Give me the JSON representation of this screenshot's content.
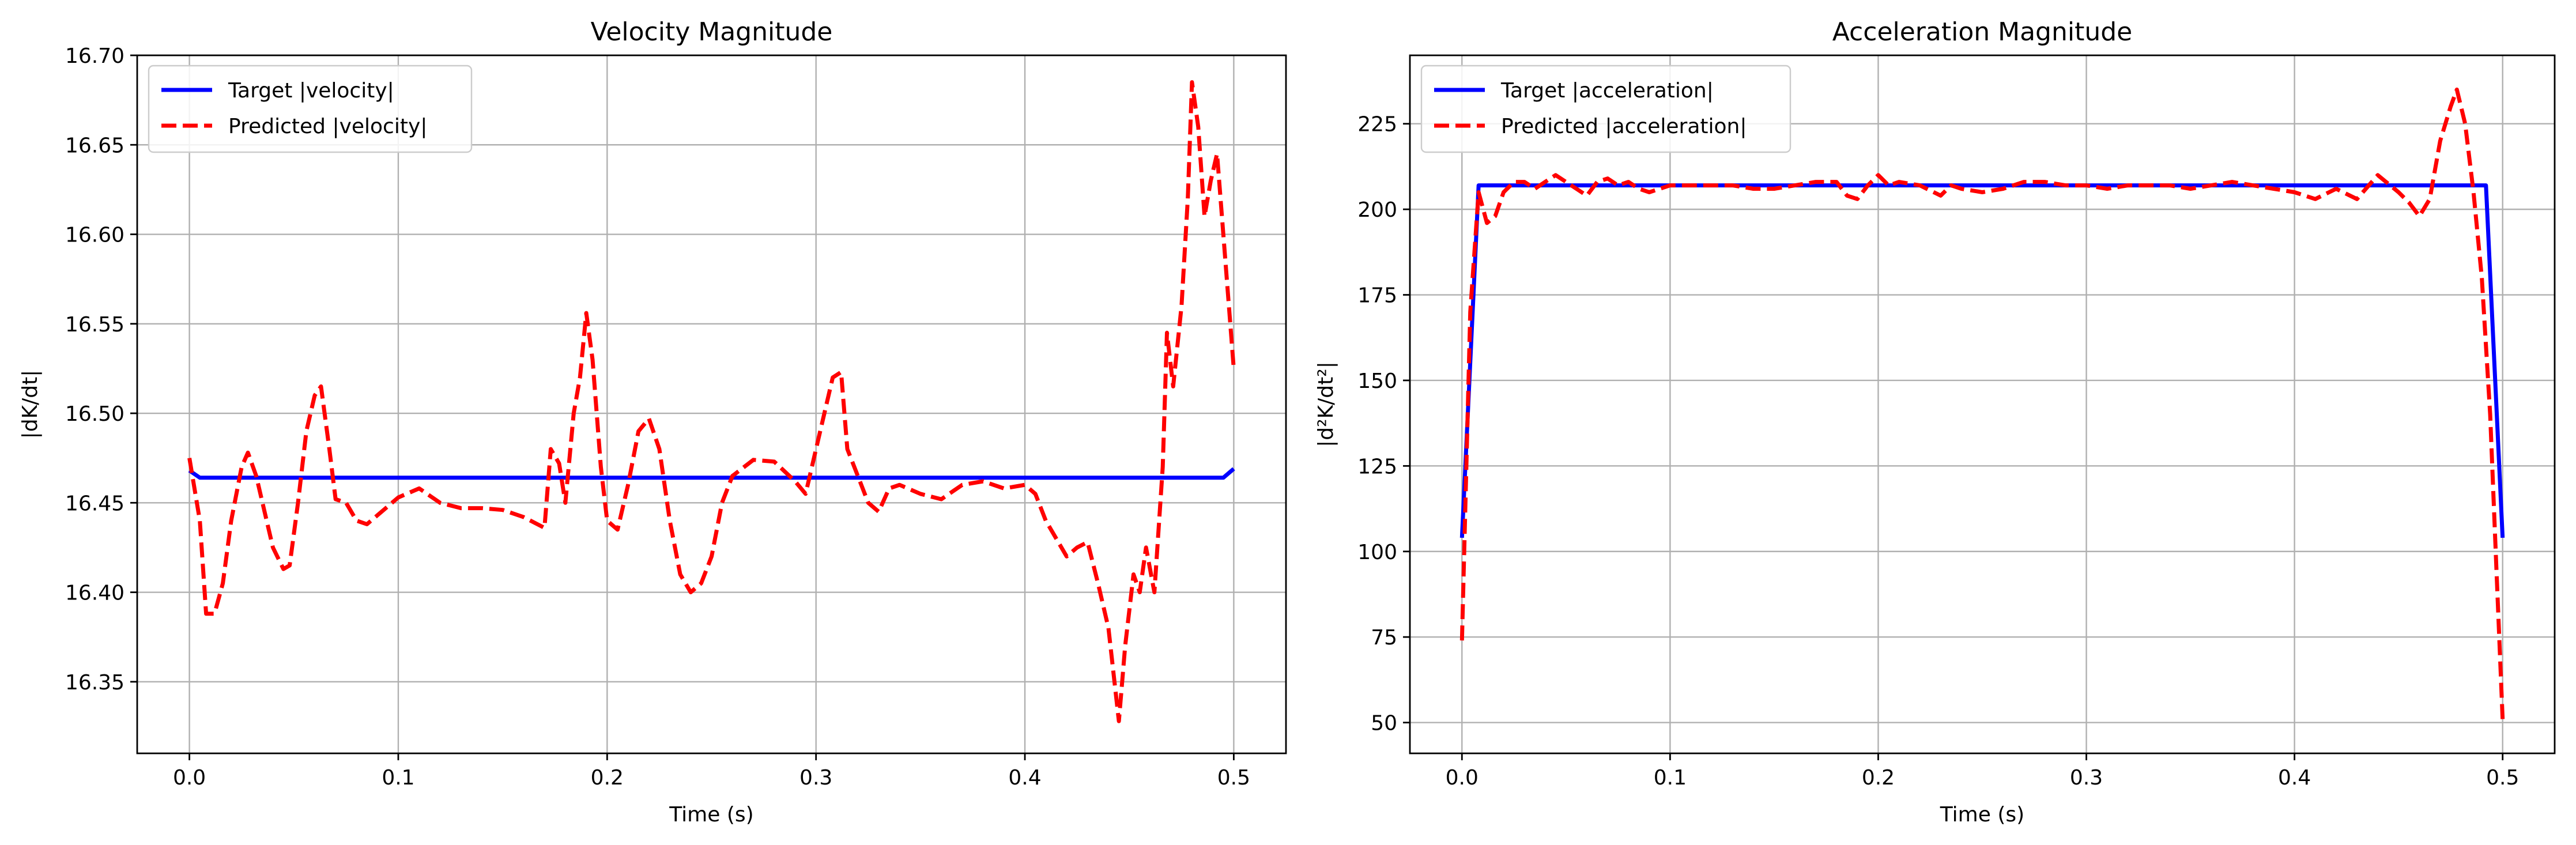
{
  "chart_data": [
    {
      "type": "line",
      "title": "Velocity Magnitude",
      "xlabel": "Time (s)",
      "ylabel": "|dK/dt|",
      "xlim": [
        -0.025,
        0.525
      ],
      "ylim": [
        16.31,
        16.7
      ],
      "xticks": [
        0.0,
        0.1,
        0.2,
        0.3,
        0.4,
        0.5
      ],
      "xtick_labels": [
        "0.0",
        "0.1",
        "0.2",
        "0.3",
        "0.4",
        "0.5"
      ],
      "yticks": [
        16.35,
        16.4,
        16.45,
        16.5,
        16.55,
        16.6,
        16.65,
        16.7
      ],
      "ytick_labels": [
        "16.35",
        "16.40",
        "16.45",
        "16.50",
        "16.55",
        "16.60",
        "16.65",
        "16.70"
      ],
      "grid": true,
      "legend_position": "upper-left",
      "series": [
        {
          "name": "Target |velocity|",
          "color": "#0000ff",
          "style": "solid",
          "x": [
            0.0,
            0.005,
            0.1,
            0.2,
            0.3,
            0.4,
            0.495,
            0.5
          ],
          "y": [
            16.468,
            16.464,
            16.464,
            16.464,
            16.464,
            16.464,
            16.464,
            16.469
          ]
        },
        {
          "name": "Predicted |velocity|",
          "color": "#ff0000",
          "style": "dashed",
          "x": [
            0.0,
            0.005,
            0.008,
            0.012,
            0.016,
            0.02,
            0.025,
            0.028,
            0.032,
            0.036,
            0.04,
            0.045,
            0.048,
            0.052,
            0.056,
            0.06,
            0.063,
            0.067,
            0.07,
            0.075,
            0.08,
            0.085,
            0.09,
            0.1,
            0.11,
            0.12,
            0.13,
            0.14,
            0.15,
            0.16,
            0.17,
            0.173,
            0.177,
            0.18,
            0.184,
            0.187,
            0.19,
            0.193,
            0.197,
            0.2,
            0.205,
            0.21,
            0.215,
            0.22,
            0.225,
            0.23,
            0.235,
            0.24,
            0.245,
            0.25,
            0.255,
            0.26,
            0.27,
            0.28,
            0.29,
            0.295,
            0.3,
            0.305,
            0.308,
            0.312,
            0.315,
            0.32,
            0.325,
            0.33,
            0.335,
            0.34,
            0.35,
            0.36,
            0.37,
            0.38,
            0.39,
            0.4,
            0.405,
            0.41,
            0.42,
            0.425,
            0.43,
            0.435,
            0.44,
            0.445,
            0.448,
            0.452,
            0.455,
            0.458,
            0.462,
            0.466,
            0.468,
            0.471,
            0.475,
            0.478,
            0.48,
            0.483,
            0.486,
            0.489,
            0.492,
            0.495,
            0.5
          ],
          "y": [
            16.475,
            16.44,
            16.388,
            16.388,
            16.405,
            16.44,
            16.47,
            16.478,
            16.465,
            16.445,
            16.425,
            16.413,
            16.415,
            16.45,
            16.49,
            16.51,
            16.515,
            16.48,
            16.452,
            16.45,
            16.44,
            16.438,
            16.443,
            16.453,
            16.458,
            16.45,
            16.447,
            16.447,
            16.446,
            16.442,
            16.436,
            16.48,
            16.472,
            16.45,
            16.5,
            16.52,
            16.556,
            16.53,
            16.47,
            16.44,
            16.435,
            16.46,
            16.49,
            16.497,
            16.48,
            16.44,
            16.41,
            16.4,
            16.405,
            16.42,
            16.45,
            16.465,
            16.474,
            16.473,
            16.462,
            16.455,
            16.48,
            16.505,
            16.52,
            16.523,
            16.48,
            16.465,
            16.45,
            16.445,
            16.458,
            16.46,
            16.455,
            16.452,
            16.46,
            16.462,
            16.458,
            16.46,
            16.455,
            16.44,
            16.42,
            16.425,
            16.428,
            16.405,
            16.38,
            16.328,
            16.37,
            16.41,
            16.4,
            16.425,
            16.4,
            16.47,
            16.545,
            16.515,
            16.56,
            16.62,
            16.685,
            16.66,
            16.61,
            16.63,
            16.645,
            16.6,
            16.525
          ]
        }
      ]
    },
    {
      "type": "line",
      "title": "Acceleration Magnitude",
      "xlabel": "Time (s)",
      "ylabel": "|d²K/dt²|",
      "xlim": [
        -0.025,
        0.525
      ],
      "ylim": [
        41,
        245
      ],
      "xticks": [
        0.0,
        0.1,
        0.2,
        0.3,
        0.4,
        0.5
      ],
      "xtick_labels": [
        "0.0",
        "0.1",
        "0.2",
        "0.3",
        "0.4",
        "0.5"
      ],
      "yticks": [
        50,
        75,
        100,
        125,
        150,
        175,
        200,
        225
      ],
      "ytick_labels": [
        "50",
        "75",
        "100",
        "125",
        "150",
        "175",
        "200",
        "225"
      ],
      "grid": true,
      "legend_position": "upper-left",
      "series": [
        {
          "name": "Target |acceleration|",
          "color": "#0000ff",
          "style": "solid",
          "x": [
            0.0,
            0.008,
            0.1,
            0.2,
            0.3,
            0.4,
            0.492,
            0.5
          ],
          "y": [
            104,
            207,
            207,
            207,
            207,
            207,
            207,
            104
          ]
        },
        {
          "name": "Predicted |acceleration|",
          "color": "#ff0000",
          "style": "dashed",
          "x": [
            0.0,
            0.004,
            0.008,
            0.012,
            0.016,
            0.02,
            0.025,
            0.03,
            0.035,
            0.04,
            0.045,
            0.05,
            0.055,
            0.06,
            0.065,
            0.07,
            0.075,
            0.08,
            0.085,
            0.09,
            0.1,
            0.11,
            0.12,
            0.13,
            0.14,
            0.15,
            0.16,
            0.17,
            0.18,
            0.185,
            0.19,
            0.195,
            0.2,
            0.205,
            0.21,
            0.22,
            0.23,
            0.235,
            0.24,
            0.25,
            0.26,
            0.27,
            0.28,
            0.29,
            0.3,
            0.31,
            0.32,
            0.33,
            0.34,
            0.35,
            0.36,
            0.37,
            0.38,
            0.39,
            0.4,
            0.41,
            0.42,
            0.43,
            0.44,
            0.45,
            0.455,
            0.46,
            0.465,
            0.47,
            0.475,
            0.478,
            0.482,
            0.486,
            0.49,
            0.494,
            0.497,
            0.5
          ],
          "y": [
            74,
            170,
            205,
            196,
            198,
            205,
            208,
            208,
            206,
            208,
            210,
            208,
            206,
            204,
            208,
            209,
            207,
            208,
            206,
            205,
            207,
            207,
            207,
            207,
            206,
            206,
            207,
            208,
            208,
            204,
            203,
            207,
            210,
            207,
            208,
            207,
            204,
            207,
            206,
            205,
            206,
            208,
            208,
            207,
            207,
            206,
            207,
            207,
            207,
            206,
            207,
            208,
            207,
            206,
            205,
            203,
            206,
            203,
            210,
            205,
            202,
            198,
            203,
            220,
            230,
            235,
            225,
            205,
            180,
            140,
            95,
            51
          ]
        }
      ]
    }
  ]
}
